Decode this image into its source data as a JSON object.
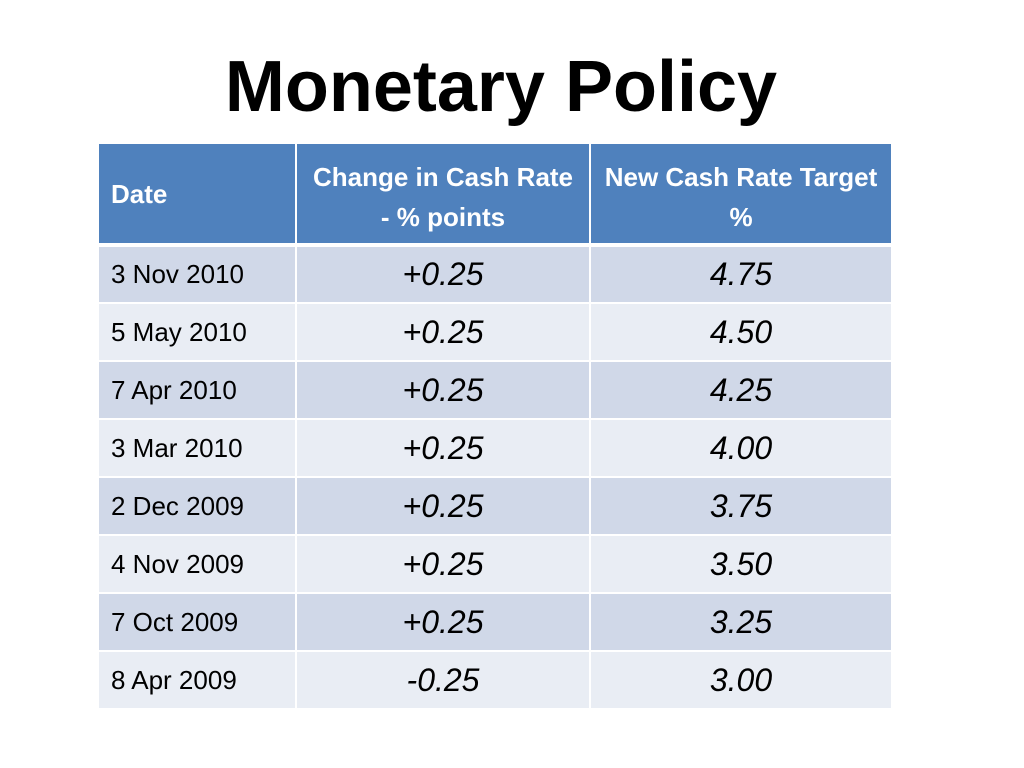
{
  "slide": {
    "title": "Monetary Policy"
  },
  "table": {
    "headers": {
      "date": "Date",
      "change": "Change in Cash Rate - % points",
      "target": "New Cash Rate Target  %"
    },
    "rows": [
      {
        "date": "3 Nov 2010",
        "change": "+0.25",
        "target": "4.75"
      },
      {
        "date": "5 May 2010",
        "change": "+0.25",
        "target": "4.50"
      },
      {
        "date": "7 Apr 2010",
        "change": "+0.25",
        "target": "4.25"
      },
      {
        "date": "3 Mar 2010",
        "change": "+0.25",
        "target": "4.00"
      },
      {
        "date": "2 Dec 2009",
        "change": "+0.25",
        "target": "3.75"
      },
      {
        "date": "4 Nov 2009",
        "change": "+0.25",
        "target": "3.50"
      },
      {
        "date": "7 Oct 2009",
        "change": "+0.25",
        "target": "3.25"
      },
      {
        "date": "8 Apr 2009",
        "change": "-0.25",
        "target": "3.00"
      }
    ]
  },
  "colors": {
    "header_bg": "#4f81bd",
    "row_odd_bg": "#d0d8e8",
    "row_even_bg": "#e9edf4"
  }
}
